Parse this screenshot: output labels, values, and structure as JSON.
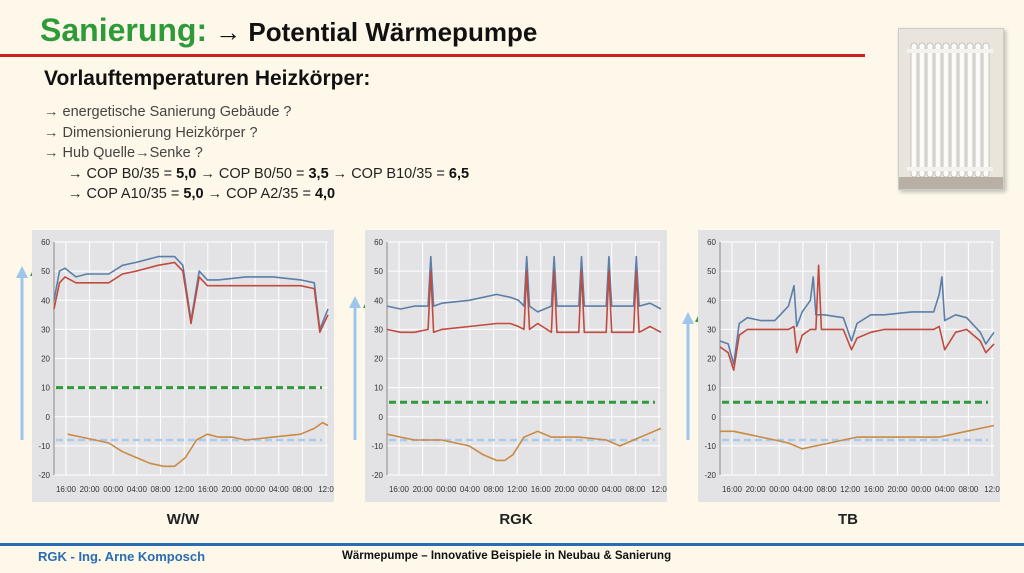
{
  "header": {
    "title_green": "Sanierung:",
    "title_black": "→ Potential Wärmepumpe",
    "subtitle": "Vorlauftemperaturen Heizkörper:"
  },
  "bullets": [
    "→ energetische Sanierung Gebäude ?",
    "→ Dimensionierung Heizkörper ?",
    "→ Hub Quelle→Senke ?"
  ],
  "cop_lines": [
    {
      "p1": "→ COP B0/35 = ",
      "v1": "5,0",
      "p2": " → COP B0/50 = ",
      "v2": "3,5",
      "p3": " → COP B10/35 = ",
      "v3": "6,5"
    },
    {
      "p1": "→ COP A10/35 = ",
      "v1": "5,0",
      "p2": " → COP A2/35 = ",
      "v2": "4,0"
    }
  ],
  "footer": {
    "left": "RGK - Ing. Arne Komposch",
    "center": "Wärmepumpe – Innovative Beispiele in Neubau & Sanierung"
  },
  "colors": {
    "green_title": "#2e9a3a",
    "red_rule": "#c8231f",
    "footer_blue": "#2a6cb3",
    "series_blue": "#5b7fa8",
    "series_red": "#c24a3f",
    "series_orange": "#c98a43",
    "dash_green": "#2e9a3a",
    "dash_lightblue": "#a7ccf0",
    "arrow_lightblue": "#9ec5ec",
    "arrow_green": "#2e9a3a"
  },
  "chart_data": [
    {
      "type": "line",
      "label": "W/W",
      "ylim": [
        -20,
        60
      ],
      "yticks": [
        "60",
        "50",
        "40",
        "30",
        "20",
        "10",
        "0",
        "-10",
        "-20"
      ],
      "xticks": [
        "16:00",
        "20:00",
        "00:00",
        "04:00",
        "08:00",
        "12:00",
        "16:00",
        "20:00",
        "00:00",
        "04:00",
        "08:00",
        "12:0"
      ],
      "green_dash": 10,
      "blue_dash": -8,
      "series": [
        {
          "color": "blue",
          "points": [
            [
              0,
              40
            ],
            [
              0.02,
              50
            ],
            [
              0.04,
              51
            ],
            [
              0.08,
              48
            ],
            [
              0.12,
              49
            ],
            [
              0.2,
              49
            ],
            [
              0.25,
              52
            ],
            [
              0.3,
              53
            ],
            [
              0.38,
              55
            ],
            [
              0.44,
              55
            ],
            [
              0.47,
              52
            ],
            [
              0.5,
              33
            ],
            [
              0.53,
              50
            ],
            [
              0.56,
              47
            ],
            [
              0.6,
              47
            ],
            [
              0.7,
              48
            ],
            [
              0.8,
              48
            ],
            [
              0.9,
              47
            ],
            [
              0.95,
              46
            ],
            [
              0.97,
              30
            ],
            [
              1,
              37
            ]
          ]
        },
        {
          "color": "red",
          "points": [
            [
              0,
              37
            ],
            [
              0.02,
              46
            ],
            [
              0.04,
              48
            ],
            [
              0.08,
              46
            ],
            [
              0.12,
              46
            ],
            [
              0.2,
              46
            ],
            [
              0.25,
              49
            ],
            [
              0.3,
              50
            ],
            [
              0.38,
              52
            ],
            [
              0.44,
              53
            ],
            [
              0.47,
              50
            ],
            [
              0.5,
              32
            ],
            [
              0.53,
              48
            ],
            [
              0.56,
              45
            ],
            [
              0.6,
              45
            ],
            [
              0.7,
              45
            ],
            [
              0.8,
              45
            ],
            [
              0.9,
              45
            ],
            [
              0.95,
              44
            ],
            [
              0.97,
              29
            ],
            [
              1,
              35
            ]
          ]
        },
        {
          "color": "orange",
          "points": [
            [
              0.05,
              -6
            ],
            [
              0.1,
              -7
            ],
            [
              0.15,
              -8
            ],
            [
              0.2,
              -9
            ],
            [
              0.25,
              -12
            ],
            [
              0.3,
              -14
            ],
            [
              0.35,
              -16
            ],
            [
              0.4,
              -17
            ],
            [
              0.44,
              -17
            ],
            [
              0.48,
              -14
            ],
            [
              0.52,
              -8
            ],
            [
              0.56,
              -6
            ],
            [
              0.6,
              -7
            ],
            [
              0.65,
              -7
            ],
            [
              0.7,
              -8
            ],
            [
              0.8,
              -7
            ],
            [
              0.9,
              -6
            ],
            [
              0.95,
              -4
            ],
            [
              0.98,
              -2
            ],
            [
              1,
              -3
            ]
          ]
        }
      ]
    },
    {
      "type": "line",
      "label": "RGK",
      "ylim": [
        -20,
        60
      ],
      "yticks": [
        "60",
        "50",
        "40",
        "30",
        "20",
        "10",
        "0",
        "-10",
        "-20"
      ],
      "xticks": [
        "16:00",
        "20:00",
        "00:00",
        "04:00",
        "08:00",
        "12:00",
        "16:00",
        "20:00",
        "00:00",
        "04:00",
        "08:00",
        "12:0"
      ],
      "green_dash": 5,
      "blue_dash": -8,
      "series": [
        {
          "color": "blue",
          "points": [
            [
              0,
              38
            ],
            [
              0.05,
              37
            ],
            [
              0.1,
              38
            ],
            [
              0.15,
              38
            ],
            [
              0.16,
              55
            ],
            [
              0.17,
              38
            ],
            [
              0.2,
              39
            ],
            [
              0.3,
              40
            ],
            [
              0.4,
              42
            ],
            [
              0.45,
              41
            ],
            [
              0.48,
              40
            ],
            [
              0.5,
              38
            ],
            [
              0.51,
              55
            ],
            [
              0.52,
              38
            ],
            [
              0.55,
              36
            ],
            [
              0.6,
              38
            ],
            [
              0.61,
              55
            ],
            [
              0.62,
              38
            ],
            [
              0.7,
              38
            ],
            [
              0.71,
              55
            ],
            [
              0.72,
              38
            ],
            [
              0.8,
              38
            ],
            [
              0.81,
              55
            ],
            [
              0.82,
              38
            ],
            [
              0.9,
              38
            ],
            [
              0.91,
              55
            ],
            [
              0.92,
              38
            ],
            [
              0.96,
              39
            ],
            [
              1,
              37
            ]
          ]
        },
        {
          "color": "red",
          "points": [
            [
              0,
              30
            ],
            [
              0.05,
              29
            ],
            [
              0.1,
              29
            ],
            [
              0.15,
              30
            ],
            [
              0.16,
              50
            ],
            [
              0.17,
              29
            ],
            [
              0.2,
              30
            ],
            [
              0.3,
              31
            ],
            [
              0.4,
              32
            ],
            [
              0.45,
              32
            ],
            [
              0.48,
              31
            ],
            [
              0.5,
              30
            ],
            [
              0.51,
              50
            ],
            [
              0.52,
              30
            ],
            [
              0.55,
              32
            ],
            [
              0.6,
              29
            ],
            [
              0.61,
              50
            ],
            [
              0.62,
              29
            ],
            [
              0.7,
              29
            ],
            [
              0.71,
              50
            ],
            [
              0.72,
              29
            ],
            [
              0.8,
              29
            ],
            [
              0.81,
              50
            ],
            [
              0.82,
              29
            ],
            [
              0.9,
              29
            ],
            [
              0.91,
              50
            ],
            [
              0.92,
              29
            ],
            [
              0.96,
              31
            ],
            [
              1,
              29
            ]
          ]
        },
        {
          "color": "orange",
          "points": [
            [
              0,
              -6
            ],
            [
              0.05,
              -7
            ],
            [
              0.1,
              -8
            ],
            [
              0.2,
              -8
            ],
            [
              0.3,
              -10
            ],
            [
              0.35,
              -13
            ],
            [
              0.4,
              -15
            ],
            [
              0.43,
              -15
            ],
            [
              0.46,
              -13
            ],
            [
              0.5,
              -7
            ],
            [
              0.55,
              -5
            ],
            [
              0.6,
              -7
            ],
            [
              0.7,
              -7
            ],
            [
              0.8,
              -8
            ],
            [
              0.85,
              -10
            ],
            [
              0.9,
              -8
            ],
            [
              0.95,
              -6
            ],
            [
              1,
              -4
            ]
          ]
        }
      ]
    },
    {
      "type": "line",
      "label": "TB",
      "ylim": [
        -20,
        60
      ],
      "yticks": [
        "60",
        "50",
        "40",
        "30",
        "20",
        "10",
        "0",
        "-10",
        "-20"
      ],
      "xticks": [
        "16:00",
        "20:00",
        "00:00",
        "04:00",
        "08:00",
        "12:00",
        "16:00",
        "20:00",
        "00:00",
        "04:00",
        "08:00",
        "12:0"
      ],
      "green_dash": 5,
      "blue_dash": -8,
      "series": [
        {
          "color": "blue",
          "points": [
            [
              0,
              26
            ],
            [
              0.03,
              25
            ],
            [
              0.05,
              18
            ],
            [
              0.07,
              32
            ],
            [
              0.1,
              34
            ],
            [
              0.15,
              33
            ],
            [
              0.2,
              33
            ],
            [
              0.25,
              38
            ],
            [
              0.27,
              45
            ],
            [
              0.28,
              31
            ],
            [
              0.3,
              36
            ],
            [
              0.33,
              40
            ],
            [
              0.34,
              48
            ],
            [
              0.35,
              35
            ],
            [
              0.38,
              35
            ],
            [
              0.45,
              34
            ],
            [
              0.48,
              26
            ],
            [
              0.5,
              32
            ],
            [
              0.55,
              35
            ],
            [
              0.6,
              35
            ],
            [
              0.7,
              36
            ],
            [
              0.78,
              36
            ],
            [
              0.8,
              42
            ],
            [
              0.81,
              48
            ],
            [
              0.82,
              33
            ],
            [
              0.86,
              35
            ],
            [
              0.9,
              34
            ],
            [
              0.95,
              29
            ],
            [
              0.97,
              25
            ],
            [
              1,
              29
            ]
          ]
        },
        {
          "color": "red",
          "points": [
            [
              0,
              24
            ],
            [
              0.03,
              22
            ],
            [
              0.05,
              16
            ],
            [
              0.07,
              28
            ],
            [
              0.1,
              30
            ],
            [
              0.15,
              30
            ],
            [
              0.2,
              30
            ],
            [
              0.25,
              30
            ],
            [
              0.27,
              31
            ],
            [
              0.28,
              22
            ],
            [
              0.3,
              28
            ],
            [
              0.33,
              30
            ],
            [
              0.35,
              30
            ],
            [
              0.36,
              52
            ],
            [
              0.37,
              30
            ],
            [
              0.4,
              30
            ],
            [
              0.45,
              30
            ],
            [
              0.48,
              23
            ],
            [
              0.5,
              27
            ],
            [
              0.55,
              29
            ],
            [
              0.6,
              30
            ],
            [
              0.7,
              30
            ],
            [
              0.78,
              30
            ],
            [
              0.8,
              31
            ],
            [
              0.82,
              23
            ],
            [
              0.86,
              29
            ],
            [
              0.9,
              30
            ],
            [
              0.95,
              26
            ],
            [
              0.97,
              22
            ],
            [
              1,
              25
            ]
          ]
        },
        {
          "color": "orange",
          "points": [
            [
              0,
              -5
            ],
            [
              0.05,
              -5
            ],
            [
              0.1,
              -6
            ],
            [
              0.15,
              -7
            ],
            [
              0.2,
              -8
            ],
            [
              0.25,
              -9
            ],
            [
              0.3,
              -11
            ],
            [
              0.35,
              -10
            ],
            [
              0.4,
              -9
            ],
            [
              0.45,
              -8
            ],
            [
              0.5,
              -7
            ],
            [
              0.55,
              -7
            ],
            [
              0.6,
              -7
            ],
            [
              0.7,
              -7
            ],
            [
              0.8,
              -7
            ],
            [
              0.85,
              -6
            ],
            [
              0.9,
              -5
            ],
            [
              0.95,
              -4
            ],
            [
              1,
              -3
            ]
          ]
        }
      ]
    }
  ]
}
